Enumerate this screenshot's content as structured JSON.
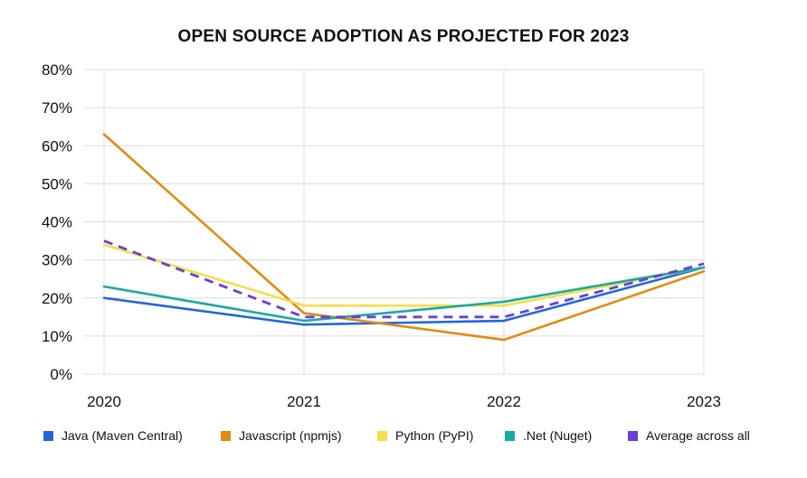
{
  "chart_data": {
    "type": "line",
    "title": "OPEN SOURCE ADOPTION AS PROJECTED FOR 2023",
    "xlabel": "",
    "ylabel": "",
    "categories": [
      "2020",
      "2021",
      "2022",
      "2023"
    ],
    "ylim": [
      0,
      80
    ],
    "yticks": [
      0,
      10,
      20,
      30,
      40,
      50,
      60,
      70,
      80
    ],
    "ytick_labels": [
      "0%",
      "10%",
      "20%",
      "30%",
      "40%",
      "50%",
      "60%",
      "70%",
      "80%"
    ],
    "grid": true,
    "legend_position": "bottom",
    "series": [
      {
        "name": "Java (Maven Central)",
        "color": "#2166dd",
        "dashed": false,
        "values": [
          20,
          13,
          14,
          28
        ]
      },
      {
        "name": "Javascript (npmjs)",
        "color": "#e38a12",
        "dashed": false,
        "values": [
          63,
          16,
          9,
          27
        ]
      },
      {
        "name": "Python (PyPI)",
        "color": "#f3de4a",
        "dashed": false,
        "values": [
          34,
          18,
          18,
          28
        ]
      },
      {
        "name": ".Net (Nuget)",
        "color": "#1aaaa0",
        "dashed": false,
        "values": [
          23,
          14,
          19,
          28
        ]
      },
      {
        "name": "Average across all",
        "color": "#6a3fd6",
        "dashed": true,
        "values": [
          35,
          15,
          15,
          29
        ]
      }
    ]
  }
}
